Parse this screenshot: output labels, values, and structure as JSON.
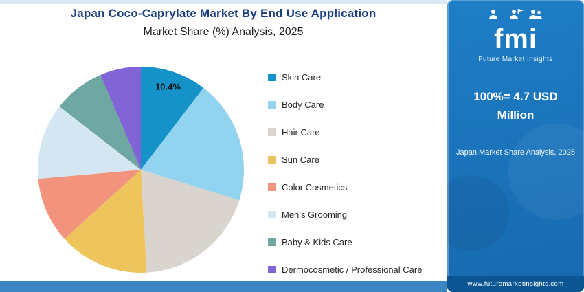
{
  "header": {
    "title": "Japan Coco-Caprylate Market By End Use Application",
    "subtitle": "Market Share (%) Analysis, 2025"
  },
  "chart_data": {
    "type": "pie",
    "title": "Japan Coco-Caprylate Market By End Use Application",
    "subtitle": "Market Share (%) Analysis, 2025",
    "labels": [
      "Skin Care",
      "Body Care",
      "Hair Care",
      "Sun Care",
      "Color Cosmetics",
      "Men’s Grooming",
      "Baby & Kids Care",
      "Dermocosmetic / Professional Care"
    ],
    "values": [
      10.4,
      19.4,
      19.3,
      14.2,
      10.3,
      11.9,
      8.1,
      6.4
    ],
    "colors": [
      "#1593c9",
      "#92d4f0",
      "#d9d4cd",
      "#eec45c",
      "#f2937e",
      "#d3e6f2",
      "#6fa8a2",
      "#8165d6"
    ],
    "shown_labels": [
      {
        "label": "Skin Care",
        "text": "10.4%"
      }
    ],
    "start_angle_deg": 0,
    "legend_position": "right",
    "data_label_color": "#101010"
  },
  "sidebar": {
    "logo_text": "fmi",
    "logo_subtext": "Future Market Insights",
    "highlight": "100%= 4.7 USD Million",
    "caption": "Japan Market Share Analysis, 2025",
    "footer_url": "www.futuremarketinsights.com"
  },
  "colors": {
    "title_text": "#1a3e7e",
    "sidebar_panel": "#1b76bc",
    "sidebar_footer": "#0b5593",
    "bottom_strip": "#3c86c4"
  }
}
